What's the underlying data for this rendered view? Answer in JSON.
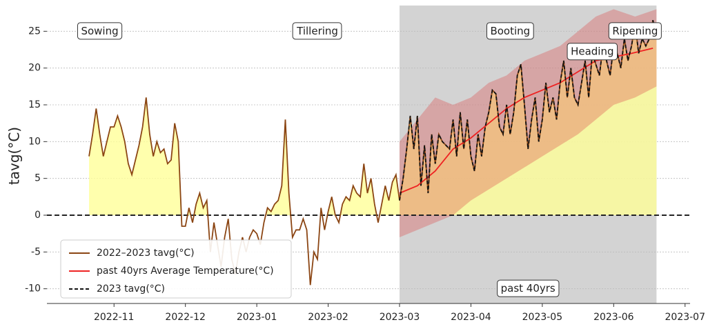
{
  "chart_data": {
    "type": "line",
    "ylabel": "tavg(°C)",
    "xlim": [
      -0.94,
      8.07
    ],
    "ylim": [
      -12,
      28.5
    ],
    "xticks": [
      {
        "value": 0,
        "label": "2022-11"
      },
      {
        "value": 1,
        "label": "2022-12"
      },
      {
        "value": 2,
        "label": "2023-01"
      },
      {
        "value": 3,
        "label": "2023-02"
      },
      {
        "value": 4,
        "label": "2023-03"
      },
      {
        "value": 5,
        "label": "2023-04"
      },
      {
        "value": 6,
        "label": "2023-05"
      },
      {
        "value": 7,
        "label": "2023-06"
      },
      {
        "value": 8,
        "label": "2023-07"
      }
    ],
    "yticks": [
      -10,
      -5,
      0,
      5,
      10,
      15,
      20,
      25
    ],
    "grid": true,
    "legend": "lower left",
    "hline": {
      "value": 0,
      "color": "#222222"
    },
    "shade": {
      "x": [
        4.0,
        7.6
      ],
      "color": "#d3d3d3",
      "label": "past 40yrs",
      "label_x": 5.8,
      "label_y": -10
    },
    "fill_positive_color": "#ffff99",
    "band": {
      "color": "#dc5050",
      "x": [
        4.0,
        4.25,
        4.5,
        4.75,
        5.0,
        5.25,
        5.5,
        5.75,
        6.0,
        6.25,
        6.5,
        6.75,
        7.0,
        7.3,
        7.6
      ],
      "upper": [
        10,
        13,
        16,
        15,
        16,
        18,
        19,
        21,
        22,
        23,
        25,
        27,
        28,
        27,
        28
      ],
      "lower": [
        -3,
        -2,
        -1,
        0,
        2,
        3.5,
        5,
        6.5,
        8,
        9.5,
        11,
        13,
        15,
        16,
        17.5
      ]
    },
    "series": [
      {
        "name": "2022–2023 tavg(°C)",
        "color": "#8b4513",
        "dash": false,
        "x": [
          -0.35,
          -0.3,
          -0.25,
          -0.2,
          -0.15,
          -0.1,
          -0.05,
          0,
          0.05,
          0.1,
          0.15,
          0.2,
          0.25,
          0.3,
          0.35,
          0.4,
          0.45,
          0.5,
          0.55,
          0.6,
          0.65,
          0.7,
          0.75,
          0.8,
          0.85,
          0.9,
          0.95,
          1.0,
          1.05,
          1.1,
          1.15,
          1.2,
          1.25,
          1.3,
          1.35,
          1.4,
          1.45,
          1.5,
          1.55,
          1.6,
          1.65,
          1.7,
          1.75,
          1.8,
          1.85,
          1.9,
          1.95,
          2.0,
          2.05,
          2.1,
          2.15,
          2.2,
          2.25,
          2.3,
          2.35,
          2.4,
          2.45,
          2.5,
          2.55,
          2.6,
          2.65,
          2.7,
          2.75,
          2.8,
          2.85,
          2.9,
          2.95,
          3.0,
          3.05,
          3.1,
          3.15,
          3.2,
          3.25,
          3.3,
          3.35,
          3.4,
          3.45,
          3.5,
          3.55,
          3.6,
          3.65,
          3.7,
          3.75,
          3.8,
          3.85,
          3.9,
          3.95,
          4.0,
          4.05,
          4.1,
          4.15,
          4.2,
          4.25,
          4.3,
          4.35,
          4.4,
          4.45,
          4.5,
          4.55,
          4.6,
          4.7,
          4.75,
          4.8,
          4.85,
          4.9,
          4.95,
          5.0,
          5.05,
          5.1,
          5.15,
          5.2,
          5.25,
          5.3,
          5.35,
          5.4,
          5.45,
          5.5,
          5.55,
          5.6,
          5.65,
          5.7,
          5.75,
          5.8,
          5.85,
          5.9,
          5.95,
          6.0,
          6.05,
          6.1,
          6.15,
          6.2,
          6.25,
          6.3,
          6.35,
          6.4,
          6.45,
          6.5,
          6.55,
          6.6,
          6.65,
          6.7,
          6.8,
          6.85,
          6.9,
          6.95,
          7.0,
          7.05,
          7.1,
          7.15,
          7.2,
          7.25,
          7.3,
          7.35,
          7.4,
          7.45,
          7.5,
          7.55,
          7.6
        ],
        "values": [
          8,
          11,
          14.5,
          11,
          8,
          10,
          12,
          12,
          13.5,
          12,
          10,
          7,
          5.5,
          7.5,
          9.5,
          12,
          16,
          11,
          8,
          10,
          8.5,
          9,
          7,
          7.5,
          12.5,
          10,
          -1.5,
          -1.5,
          1,
          -1,
          1.5,
          3,
          1,
          2,
          -5,
          -1,
          -4,
          -7,
          -3,
          -0.5,
          -6,
          -8,
          -5,
          -3,
          -5,
          -3,
          -2,
          -2.5,
          -4,
          -1,
          1,
          0.5,
          1.5,
          2,
          4,
          13,
          3,
          -3,
          -2,
          -2,
          -0.5,
          -2,
          -9.5,
          -5,
          -6,
          1,
          -2,
          0.5,
          2.5,
          0,
          -1,
          1.5,
          2.5,
          2,
          4,
          3,
          2.5,
          7,
          3,
          5,
          1.5,
          -1,
          1.5,
          4,
          2,
          4.5,
          5.5,
          2,
          5,
          9,
          13.5,
          9,
          13.5,
          4,
          9.5,
          3,
          11,
          7,
          11,
          10,
          9,
          13,
          8,
          14,
          9,
          13,
          8,
          6,
          11,
          8,
          12,
          14,
          17,
          16.5,
          12,
          11,
          15,
          11,
          14,
          19,
          20.5,
          15,
          9,
          13,
          16,
          10,
          13,
          18,
          14,
          16,
          13,
          18,
          21,
          16,
          20,
          16,
          15,
          18,
          21,
          16,
          22,
          19,
          23,
          21,
          19,
          23,
          22,
          20,
          24,
          21,
          23,
          26,
          22,
          24,
          23,
          24,
          26.5,
          24
        ]
      },
      {
        "name": "past 40yrs Average Temperature(°C)",
        "color": "#ee2222",
        "dash": false,
        "x": [
          4.0,
          4.25,
          4.5,
          4.75,
          5.0,
          5.25,
          5.5,
          5.75,
          6.0,
          6.25,
          6.5,
          6.75,
          7.0,
          7.25,
          7.55
        ],
        "values": [
          3,
          4,
          6,
          9,
          10.5,
          12.5,
          14.5,
          16,
          17,
          18,
          19.5,
          21,
          21.5,
          22,
          22.7
        ]
      },
      {
        "name": "2023 tavg(°C)",
        "color": "#111111",
        "dash": true,
        "x": [
          4.0,
          4.05,
          4.1,
          4.15,
          4.2,
          4.25,
          4.3,
          4.35,
          4.4,
          4.45,
          4.5,
          4.55,
          4.6,
          4.7,
          4.75,
          4.8,
          4.85,
          4.9,
          4.95,
          5.0,
          5.05,
          5.1,
          5.15,
          5.2,
          5.25,
          5.3,
          5.35,
          5.4,
          5.45,
          5.5,
          5.55,
          5.6,
          5.65,
          5.7,
          5.75,
          5.8,
          5.85,
          5.9,
          5.95,
          6.0,
          6.05,
          6.1,
          6.15,
          6.2,
          6.25,
          6.3,
          6.35,
          6.4,
          6.45,
          6.5,
          6.55,
          6.6,
          6.65,
          6.7,
          6.8,
          6.85,
          6.9,
          6.95,
          7.0,
          7.05,
          7.1,
          7.15,
          7.2,
          7.25,
          7.3,
          7.35,
          7.4,
          7.45,
          7.5,
          7.55,
          7.6
        ],
        "values": [
          2,
          5,
          9,
          13.5,
          9,
          13.5,
          4,
          9.5,
          3,
          11,
          7,
          11,
          10,
          9,
          13,
          8,
          14,
          9,
          13,
          8,
          6,
          11,
          8,
          12,
          14,
          17,
          16.5,
          12,
          11,
          15,
          11,
          14,
          19,
          20.5,
          15,
          9,
          13,
          16,
          10,
          13,
          18,
          14,
          16,
          13,
          18,
          21,
          16,
          20,
          16,
          15,
          18,
          21,
          16,
          22,
          19,
          23,
          21,
          19,
          23,
          22,
          20,
          24,
          21,
          23,
          26,
          22,
          24,
          23,
          24,
          26.5,
          24
        ]
      }
    ],
    "annotations": [
      {
        "text": "Sowing",
        "x": -0.2,
        "y": 25
      },
      {
        "text": "Tillering",
        "x": 2.85,
        "y": 25
      },
      {
        "text": "Booting",
        "x": 5.55,
        "y": 25
      },
      {
        "text": "Heading",
        "x": 6.7,
        "y": 22.2
      },
      {
        "text": "Ripening",
        "x": 7.3,
        "y": 25
      }
    ]
  }
}
